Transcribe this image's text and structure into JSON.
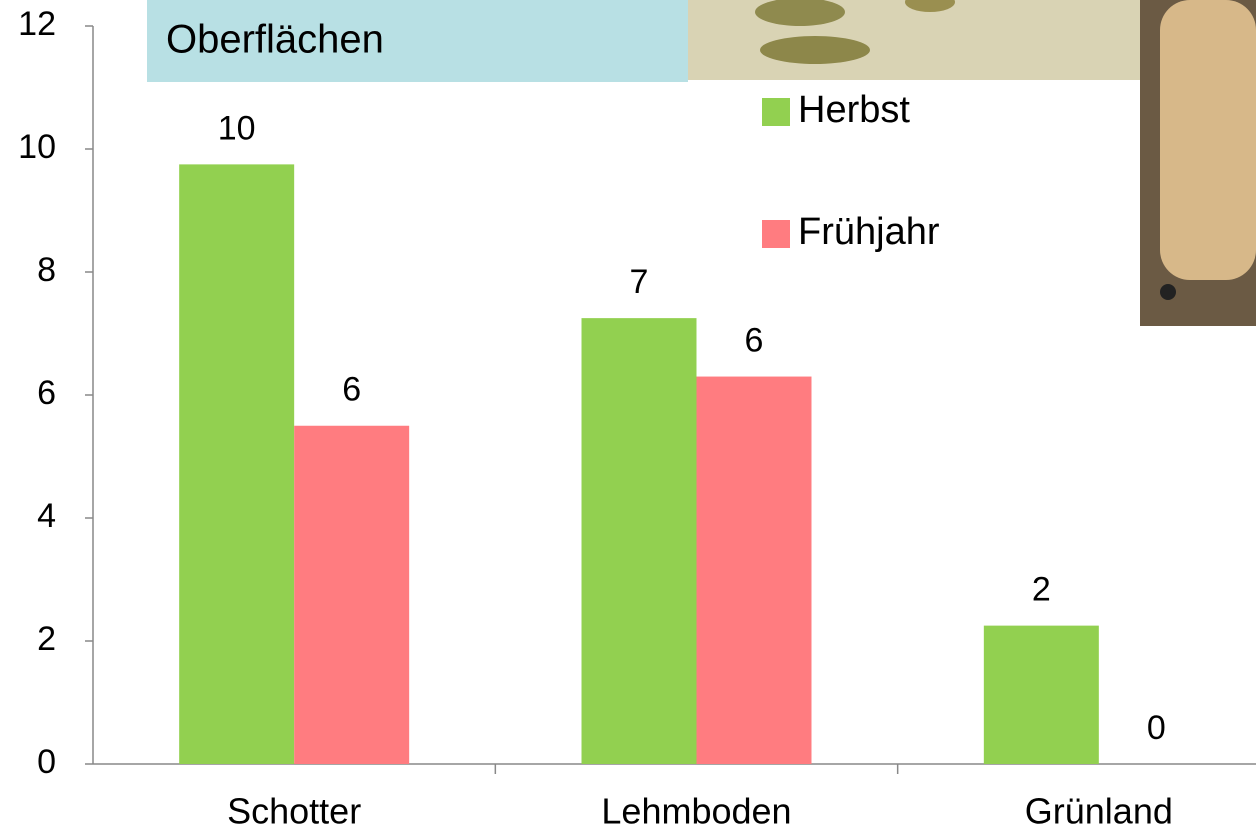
{
  "chart_data": {
    "type": "bar",
    "title": "Oberflächen",
    "categories": [
      "Schotter",
      "Lehmboden",
      "Grünland"
    ],
    "series": [
      {
        "name": "Herbst",
        "color": "#92d050",
        "values": [
          9.75,
          7.25,
          2.25
        ],
        "value_labels": [
          "10",
          "7",
          "2"
        ]
      },
      {
        "name": "Frühjahr",
        "color": "#ff7c80",
        "values": [
          5.5,
          6.3,
          0
        ],
        "value_labels": [
          "6",
          "6",
          "0"
        ]
      }
    ],
    "ylim": [
      0,
      12
    ],
    "yticks": [
      0,
      2,
      4,
      6,
      8,
      10,
      12
    ],
    "grid": false,
    "legend": "top-right"
  }
}
